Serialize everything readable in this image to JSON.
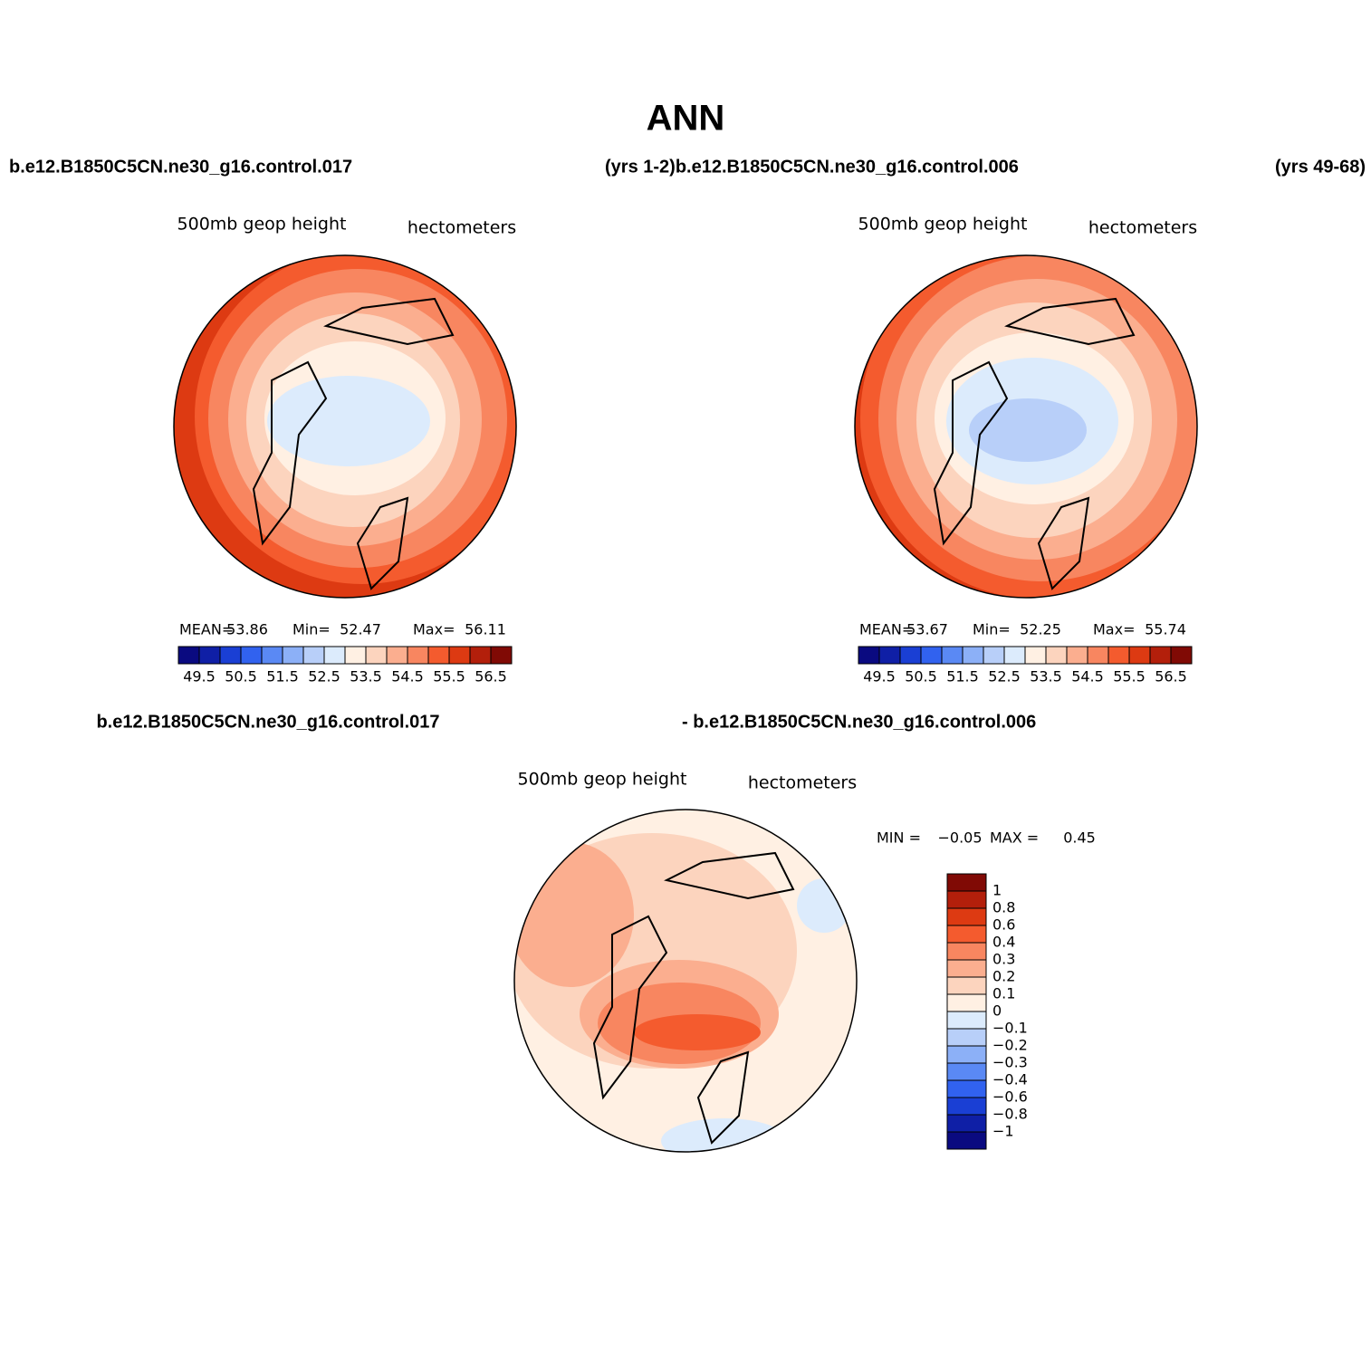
{
  "title": "ANN",
  "headers": [
    "b.e12.B1850C5CN.ne30_g16.control.017",
    "(yrs 1-2)b.e12.B1850C5CN.ne30_g16.control.006",
    "(yrs 49-68)"
  ],
  "diff_headers": [
    "b.e12.B1850C5CN.ne30_g16.control.017",
    "- b.e12.B1850C5CN.ne30_g16.control.006"
  ],
  "panels": [
    {
      "variable": "500mb geop height",
      "units": "hectometers",
      "stats": [
        [
          "MEAN=",
          "53.86"
        ],
        [
          "Min=",
          "52.47"
        ],
        [
          "Max=",
          "56.11"
        ]
      ]
    },
    {
      "variable": "500mb geop height",
      "units": "hectometers",
      "stats": [
        [
          "MEAN=",
          "53.67"
        ],
        [
          "Min=",
          "52.25"
        ],
        [
          "Max=",
          "55.74"
        ]
      ]
    },
    {
      "variable": "500mb geop height",
      "units": "hectometers",
      "stats": [
        [
          "MIN =",
          "−0.05"
        ],
        [
          "MAX =",
          "0.45"
        ]
      ]
    }
  ],
  "colorbar": {
    "labels": [
      "49.5",
      "50.5",
      "51.5",
      "52.5",
      "53.5",
      "54.5",
      "55.5",
      "56.5"
    ],
    "colors": [
      "#0a0a80",
      "#0f1fa6",
      "#1a3fd4",
      "#3162ef",
      "#5a89f4",
      "#8cb0f7",
      "#b8cff9",
      "#dcebfc",
      "#fff0e3",
      "#fcd4be",
      "#fbae8f",
      "#f88660",
      "#f45b2e",
      "#dd3a12",
      "#b31f0b",
      "#800a05"
    ]
  },
  "diff_colorbar": {
    "labels": [
      "1",
      "0.8",
      "0.6",
      "0.4",
      "0.3",
      "0.2",
      "0.1",
      "0",
      "−0.1",
      "−0.2",
      "−0.3",
      "−0.4",
      "−0.6",
      "−0.8",
      "−1"
    ],
    "colors": [
      "#800a05",
      "#b31f0b",
      "#dd3a12",
      "#f45b2e",
      "#f88660",
      "#fbae8f",
      "#fcd4be",
      "#fff0e3",
      "#dcebfc",
      "#b8cff9",
      "#8cb0f7",
      "#5a89f4",
      "#3162ef",
      "#1a3fd4",
      "#0f1fa6",
      "#0a0a80"
    ]
  }
}
